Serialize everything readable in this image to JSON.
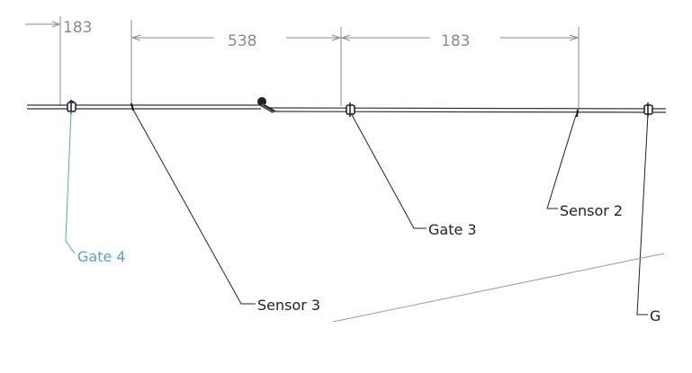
{
  "dimensions": {
    "d1": "183",
    "d2": "538",
    "d3": "183"
  },
  "labels": {
    "gate4": "Gate 4",
    "sensor3": "Sensor 3",
    "gate3": "Gate 3",
    "sensor2": "Sensor 2",
    "gate_partial": "G"
  },
  "colors": {
    "dimension": "#8a8a8a",
    "leader": "#222222",
    "highlight": "#5aa0d0",
    "pipe": "#333333"
  }
}
